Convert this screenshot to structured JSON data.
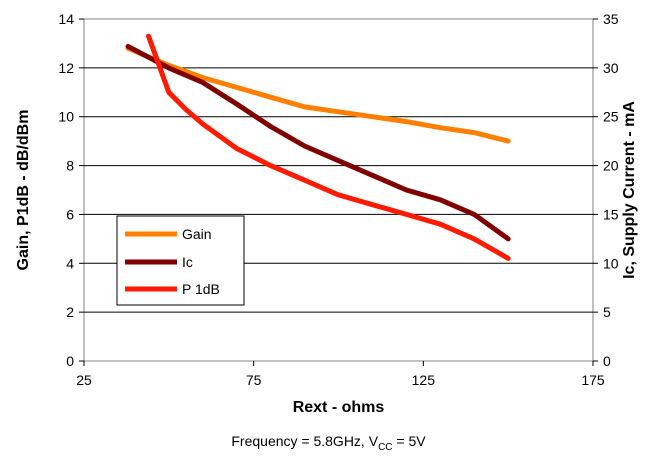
{
  "chart_data": {
    "type": "line",
    "xlabel": "Rext - ohms",
    "ylabel_left": "Gain, P1dB - dB/dBm",
    "ylabel_right": "Ic, Supply Current - mA",
    "xlim": [
      25,
      175
    ],
    "xticks": [
      25,
      75,
      125,
      175
    ],
    "ylim_left": [
      0,
      14
    ],
    "yticks_left": [
      0,
      2,
      4,
      6,
      8,
      10,
      12,
      14
    ],
    "ylim_right": [
      0,
      35
    ],
    "yticks_right": [
      0,
      5,
      10,
      15,
      20,
      25,
      30,
      35
    ],
    "grid": "horizontal",
    "legend_position": "lower-left",
    "series": [
      {
        "name": "Gain",
        "axis": "left",
        "color": "#FF7F00",
        "x": [
          38,
          50,
          60,
          70,
          80,
          90,
          100,
          110,
          120,
          130,
          140,
          150
        ],
        "y": [
          12.8,
          12.1,
          11.6,
          11.2,
          10.8,
          10.4,
          10.2,
          10.0,
          9.8,
          9.55,
          9.35,
          9.0
        ]
      },
      {
        "name": "Ic",
        "axis": "right",
        "color": "#800000",
        "x": [
          38,
          50,
          60,
          70,
          80,
          90,
          100,
          110,
          120,
          130,
          140,
          150
        ],
        "y": [
          32.2,
          30.0,
          28.5,
          26.3,
          24.0,
          22.0,
          20.5,
          19.0,
          17.5,
          16.5,
          15.0,
          12.5
        ]
      },
      {
        "name": "P1dB",
        "axis": "left",
        "color": "#FF1A00",
        "x": [
          44,
          50,
          55,
          60,
          70,
          80,
          90,
          100,
          110,
          120,
          130,
          140,
          150
        ],
        "y": [
          13.3,
          11.0,
          10.3,
          9.7,
          8.7,
          8.0,
          7.4,
          6.8,
          6.4,
          6.0,
          5.6,
          5.0,
          4.2
        ]
      }
    ],
    "legend_labels": [
      "Gain",
      "Ic",
      "P 1dB"
    ],
    "caption": {
      "prefix": "Frequency = 5.8GHz, V",
      "sub": "CC",
      "suffix": " = 5V"
    }
  }
}
